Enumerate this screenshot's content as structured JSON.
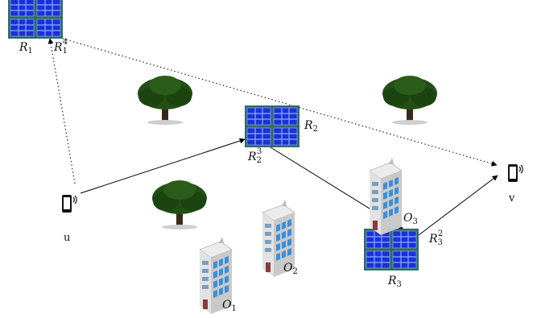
{
  "colors": {
    "panel_fill": "#1f2fd6",
    "panel_grid": "#7fb0ff",
    "panel_frame": "#2f6b68",
    "tree_foliage": "#1f4a12",
    "tree_trunk": "#3a2a1a",
    "building_wall": "#d6d6d6",
    "building_window": "#3a8fd8",
    "phone_body": "#111111",
    "arrow": "#000000"
  },
  "ris": [
    {
      "id": "R1",
      "label_main": "R",
      "label_sub": "1",
      "label_sup": ""
    },
    {
      "id": "R1_4",
      "label_main": "R",
      "label_sub": "1",
      "label_sup": "4"
    },
    {
      "id": "R2",
      "label_main": "R",
      "label_sub": "2",
      "label_sup": ""
    },
    {
      "id": "R2_3",
      "label_main": "R",
      "label_sub": "2",
      "label_sup": "3"
    },
    {
      "id": "R3",
      "label_main": "R",
      "label_sub": "3",
      "label_sup": ""
    },
    {
      "id": "R3_2",
      "label_main": "R",
      "label_sub": "3",
      "label_sup": "2"
    }
  ],
  "obstacles": [
    {
      "id": "O1",
      "label_main": "O",
      "label_sub": "1"
    },
    {
      "id": "O2",
      "label_main": "O",
      "label_sub": "2"
    },
    {
      "id": "O3",
      "label_main": "O",
      "label_sub": "3"
    }
  ],
  "users": {
    "source": "u",
    "destination": "v"
  },
  "icons": [
    "ris-panel-icon",
    "tree-icon",
    "building-icon",
    "phone-icon"
  ]
}
